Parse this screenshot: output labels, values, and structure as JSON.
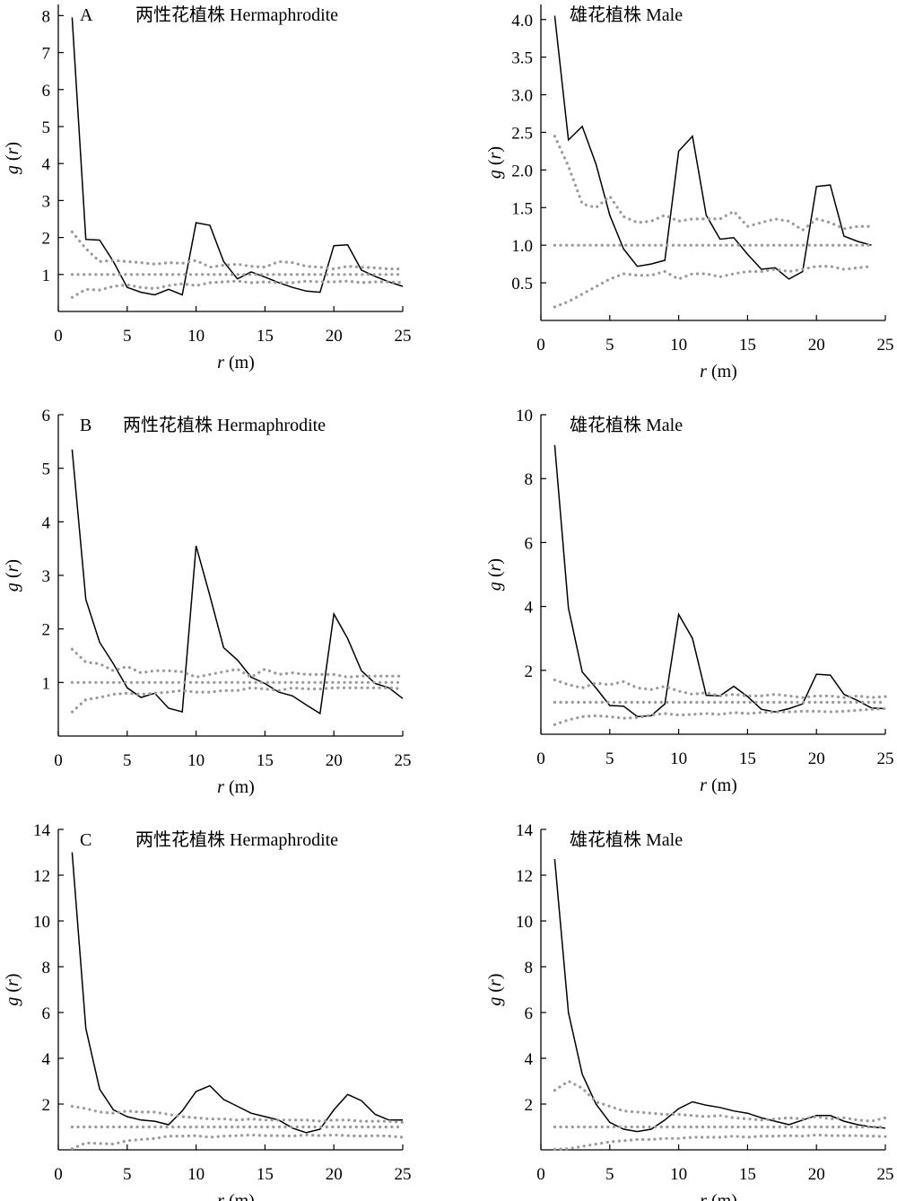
{
  "figure": {
    "panel_letters": [
      "A",
      "B",
      "C"
    ]
  },
  "chart_data": [
    {
      "id": "A-herm",
      "type": "line",
      "panel_letter": "A",
      "title": "两性花植株 Hermaphrodite",
      "xlabel": "r (m)",
      "ylabel": "g (r)",
      "xlim": [
        0,
        25
      ],
      "ylim": [
        0,
        8.3
      ],
      "xticks": [
        0,
        5,
        10,
        15,
        20,
        25
      ],
      "yticks": [
        1,
        2,
        3,
        4,
        5,
        6,
        7,
        8
      ],
      "x": [
        1,
        2,
        3,
        4,
        5,
        6,
        7,
        8,
        9,
        10,
        11,
        12,
        13,
        14,
        15,
        16,
        17,
        18,
        19,
        20,
        21,
        22,
        23,
        24,
        25
      ],
      "series": [
        {
          "role": "observed",
          "style": "solid",
          "values": [
            7.95,
            1.95,
            1.93,
            1.35,
            0.65,
            0.52,
            0.45,
            0.6,
            0.45,
            2.4,
            2.33,
            1.35,
            0.88,
            1.07,
            0.93,
            0.78,
            0.65,
            0.55,
            0.52,
            1.78,
            1.8,
            1.12,
            0.95,
            0.8,
            0.68
          ]
        },
        {
          "role": "upper_envelope",
          "style": "dotted",
          "values": [
            2.15,
            1.7,
            1.35,
            1.38,
            1.35,
            1.32,
            1.28,
            1.32,
            1.3,
            1.38,
            1.2,
            1.25,
            1.28,
            1.22,
            1.2,
            1.35,
            1.32,
            1.22,
            1.2,
            1.15,
            1.22,
            1.2,
            1.18,
            1.15,
            1.15
          ]
        },
        {
          "role": "expected",
          "style": "dotted",
          "values": [
            1,
            1,
            1,
            1,
            1,
            1,
            1,
            1,
            1,
            1,
            1,
            1,
            1,
            1,
            1,
            1,
            1,
            1,
            1,
            1,
            1,
            1,
            1,
            1,
            1
          ]
        },
        {
          "role": "lower_envelope",
          "style": "dotted",
          "values": [
            0.38,
            0.6,
            0.58,
            0.68,
            0.72,
            0.65,
            0.62,
            0.7,
            0.75,
            0.7,
            0.78,
            0.8,
            0.82,
            0.78,
            0.8,
            0.78,
            0.78,
            0.82,
            0.8,
            0.8,
            0.82,
            0.78,
            0.8,
            0.8,
            0.78
          ]
        }
      ]
    },
    {
      "id": "A-male",
      "type": "line",
      "title": "雄花植株 Male",
      "xlabel": "r (m)",
      "ylabel": "g (r)",
      "xlim": [
        0,
        25
      ],
      "ylim": [
        0,
        4.2
      ],
      "xticks": [
        0,
        5,
        10,
        15,
        20,
        25
      ],
      "yticks": [
        0.5,
        1.0,
        1.5,
        2.0,
        2.5,
        3.0,
        3.5,
        4.0
      ],
      "ytick_labels": [
        "0.5",
        "1.0",
        "1.5",
        "2.0",
        "2.5",
        "3.0",
        "3.5",
        "4.0"
      ],
      "x": [
        1,
        2,
        3,
        4,
        5,
        6,
        7,
        8,
        9,
        10,
        11,
        12,
        13,
        14,
        15,
        16,
        17,
        18,
        19,
        20,
        21,
        22,
        23,
        24
      ],
      "series": [
        {
          "role": "observed",
          "style": "solid",
          "values": [
            4.05,
            2.4,
            2.58,
            2.08,
            1.4,
            0.95,
            0.72,
            0.75,
            0.8,
            2.25,
            2.45,
            1.4,
            1.08,
            1.1,
            0.88,
            0.68,
            0.7,
            0.55,
            0.65,
            1.78,
            1.8,
            1.12,
            1.05,
            1.0
          ]
        },
        {
          "role": "upper_envelope",
          "style": "dotted",
          "values": [
            2.45,
            2.05,
            1.55,
            1.5,
            1.65,
            1.38,
            1.3,
            1.32,
            1.4,
            1.32,
            1.35,
            1.35,
            1.35,
            1.45,
            1.25,
            1.3,
            1.35,
            1.32,
            1.2,
            1.35,
            1.3,
            1.22,
            1.25,
            1.25
          ]
        },
        {
          "role": "expected",
          "style": "dotted",
          "values": [
            1,
            1,
            1,
            1,
            1,
            1,
            1,
            1,
            1,
            1,
            1,
            1,
            1,
            1,
            1,
            1,
            1,
            1,
            1,
            1,
            1,
            1,
            1,
            1
          ]
        },
        {
          "role": "lower_envelope",
          "style": "dotted",
          "values": [
            0.18,
            0.25,
            0.35,
            0.45,
            0.55,
            0.62,
            0.6,
            0.6,
            0.65,
            0.55,
            0.62,
            0.62,
            0.58,
            0.62,
            0.65,
            0.65,
            0.68,
            0.65,
            0.68,
            0.72,
            0.72,
            0.68,
            0.7,
            0.72
          ]
        }
      ]
    },
    {
      "id": "B-herm",
      "type": "line",
      "panel_letter": "B",
      "title": "两性花植株 Hermaphrodite",
      "xlabel": "r (m)",
      "ylabel": "g (r)",
      "xlim": [
        0,
        25
      ],
      "ylim": [
        0,
        6.0
      ],
      "xticks": [
        0,
        5,
        10,
        15,
        20,
        25
      ],
      "yticks": [
        1,
        2,
        3,
        4,
        5,
        6
      ],
      "x": [
        1,
        2,
        3,
        4,
        5,
        6,
        7,
        8,
        9,
        10,
        11,
        12,
        13,
        14,
        15,
        16,
        17,
        18,
        19,
        20,
        21,
        22,
        23,
        24,
        25
      ],
      "series": [
        {
          "role": "observed",
          "style": "solid",
          "values": [
            5.35,
            2.55,
            1.75,
            1.35,
            0.9,
            0.72,
            0.8,
            0.52,
            0.45,
            3.55,
            2.62,
            1.65,
            1.42,
            1.1,
            0.98,
            0.82,
            0.75,
            0.58,
            0.42,
            2.28,
            1.82,
            1.22,
            0.98,
            0.9,
            0.7
          ]
        },
        {
          "role": "upper_envelope",
          "style": "dotted",
          "values": [
            1.62,
            1.38,
            1.35,
            1.22,
            1.3,
            1.18,
            1.22,
            1.22,
            1.2,
            1.1,
            1.15,
            1.2,
            1.25,
            1.1,
            1.25,
            1.15,
            1.18,
            1.15,
            1.15,
            1.15,
            1.1,
            1.12,
            1.12,
            1.12,
            1.12
          ]
        },
        {
          "role": "expected",
          "style": "dotted",
          "values": [
            1,
            1,
            1,
            1,
            1,
            1,
            1,
            1,
            1,
            1,
            1,
            1,
            1,
            1,
            1,
            1,
            1,
            1,
            1,
            1,
            1,
            1,
            1,
            1,
            1
          ]
        },
        {
          "role": "lower_envelope",
          "style": "dotted",
          "values": [
            0.45,
            0.68,
            0.72,
            0.78,
            0.8,
            0.78,
            0.8,
            0.82,
            0.85,
            0.82,
            0.82,
            0.85,
            0.85,
            0.9,
            0.88,
            0.85,
            0.9,
            0.88,
            0.88,
            0.9,
            0.9,
            0.9,
            0.9,
            0.9,
            0.88
          ]
        }
      ]
    },
    {
      "id": "B-male",
      "type": "line",
      "title": "雄花植株 Male",
      "xlabel": "r (m)",
      "ylabel": "g (r)",
      "xlim": [
        0,
        25
      ],
      "ylim": [
        0,
        10
      ],
      "xticks": [
        0,
        5,
        10,
        15,
        20,
        25
      ],
      "yticks": [
        2,
        4,
        6,
        8,
        10
      ],
      "x": [
        1,
        2,
        3,
        4,
        5,
        6,
        7,
        8,
        9,
        10,
        11,
        12,
        13,
        14,
        15,
        16,
        17,
        18,
        19,
        20,
        21,
        22,
        23,
        24,
        25
      ],
      "series": [
        {
          "role": "observed",
          "style": "solid",
          "values": [
            9.05,
            3.95,
            1.95,
            1.45,
            0.9,
            0.88,
            0.55,
            0.58,
            0.95,
            3.75,
            3.0,
            1.22,
            1.2,
            1.5,
            1.18,
            0.78,
            0.7,
            0.8,
            0.95,
            1.88,
            1.85,
            1.25,
            1.05,
            0.82,
            0.8
          ]
        },
        {
          "role": "upper_envelope",
          "style": "dotted",
          "values": [
            1.7,
            1.55,
            1.45,
            1.6,
            1.55,
            1.65,
            1.45,
            1.4,
            1.5,
            1.35,
            1.25,
            1.3,
            1.2,
            1.25,
            1.2,
            1.2,
            1.25,
            1.2,
            1.15,
            1.2,
            1.2,
            1.15,
            1.2,
            1.15,
            1.18
          ]
        },
        {
          "role": "expected",
          "style": "dotted",
          "values": [
            1,
            1,
            1,
            1,
            1,
            1,
            1,
            1,
            1,
            1,
            1,
            1,
            1,
            1,
            1,
            1,
            1,
            1,
            1,
            1,
            1,
            1,
            1,
            1,
            1
          ]
        },
        {
          "role": "lower_envelope",
          "style": "dotted",
          "values": [
            0.3,
            0.45,
            0.55,
            0.58,
            0.55,
            0.5,
            0.52,
            0.6,
            0.65,
            0.6,
            0.62,
            0.65,
            0.62,
            0.68,
            0.65,
            0.68,
            0.7,
            0.7,
            0.72,
            0.72,
            0.7,
            0.72,
            0.75,
            0.78,
            0.8
          ]
        }
      ]
    },
    {
      "id": "C-herm",
      "type": "line",
      "panel_letter": "C",
      "title": "两性花植株 Hermaphrodite",
      "xlabel": "r (m)",
      "ylabel": "g (r)",
      "xlim": [
        0,
        25
      ],
      "ylim": [
        0,
        14
      ],
      "xticks": [
        0,
        5,
        10,
        15,
        20,
        25
      ],
      "yticks": [
        2,
        4,
        6,
        8,
        10,
        12,
        14
      ],
      "x": [
        1,
        2,
        3,
        4,
        5,
        6,
        7,
        8,
        9,
        10,
        11,
        12,
        13,
        14,
        15,
        16,
        17,
        18,
        19,
        20,
        21,
        22,
        23,
        24,
        25
      ],
      "series": [
        {
          "role": "observed",
          "style": "solid",
          "values": [
            13.0,
            5.3,
            2.65,
            1.75,
            1.45,
            1.3,
            1.25,
            1.1,
            1.7,
            2.55,
            2.8,
            2.2,
            1.9,
            1.6,
            1.45,
            1.3,
            0.95,
            0.75,
            0.9,
            1.75,
            2.42,
            2.15,
            1.55,
            1.3,
            1.3
          ]
        },
        {
          "role": "upper_envelope",
          "style": "dotted",
          "values": [
            1.9,
            1.8,
            1.65,
            1.6,
            1.7,
            1.65,
            1.65,
            1.55,
            1.45,
            1.4,
            1.35,
            1.35,
            1.3,
            1.35,
            1.3,
            1.3,
            1.3,
            1.3,
            1.25,
            1.3,
            1.3,
            1.25,
            1.25,
            1.25,
            1.2
          ]
        },
        {
          "role": "expected",
          "style": "dotted",
          "values": [
            1,
            1,
            1,
            1,
            1,
            1,
            1,
            1,
            1,
            1,
            1,
            1,
            1,
            1,
            1,
            1,
            1,
            1,
            1,
            1,
            1,
            1,
            1,
            1,
            1
          ]
        },
        {
          "role": "lower_envelope",
          "style": "dotted",
          "values": [
            0.05,
            0.3,
            0.28,
            0.25,
            0.4,
            0.45,
            0.5,
            0.6,
            0.6,
            0.62,
            0.55,
            0.6,
            0.62,
            0.65,
            0.62,
            0.62,
            0.6,
            0.65,
            0.62,
            0.65,
            0.62,
            0.6,
            0.62,
            0.6,
            0.55
          ]
        }
      ]
    },
    {
      "id": "C-male",
      "type": "line",
      "title": "雄花植株 Male",
      "xlabel": "r (m)",
      "ylabel": "g (r)",
      "xlim": [
        0,
        25
      ],
      "ylim": [
        0,
        14
      ],
      "xticks": [
        0,
        5,
        10,
        15,
        20,
        25
      ],
      "yticks": [
        2,
        4,
        6,
        8,
        10,
        12,
        14
      ],
      "x": [
        1,
        2,
        3,
        4,
        5,
        6,
        7,
        8,
        9,
        10,
        11,
        12,
        13,
        14,
        15,
        16,
        17,
        18,
        19,
        20,
        21,
        22,
        23,
        24,
        25
      ],
      "series": [
        {
          "role": "observed",
          "style": "solid",
          "values": [
            12.7,
            6.0,
            3.3,
            2.0,
            1.2,
            0.9,
            0.8,
            0.9,
            1.3,
            1.8,
            2.1,
            1.95,
            1.85,
            1.7,
            1.6,
            1.4,
            1.25,
            1.1,
            1.3,
            1.5,
            1.5,
            1.25,
            1.1,
            1.0,
            0.95
          ]
        },
        {
          "role": "upper_envelope",
          "style": "dotted",
          "values": [
            2.6,
            3.0,
            2.7,
            2.1,
            1.9,
            1.7,
            1.65,
            1.6,
            1.55,
            1.55,
            1.5,
            1.45,
            1.5,
            1.4,
            1.35,
            1.3,
            1.35,
            1.4,
            1.35,
            1.45,
            1.35,
            1.4,
            1.3,
            1.25,
            1.4
          ]
        },
        {
          "role": "expected",
          "style": "dotted",
          "values": [
            1,
            1,
            1,
            1,
            1,
            1,
            1,
            1,
            1,
            1,
            1,
            1,
            1,
            1,
            1,
            1,
            1,
            1,
            1,
            1,
            1,
            1,
            1,
            1,
            1
          ]
        },
        {
          "role": "lower_envelope",
          "style": "dotted",
          "values": [
            0.02,
            0.05,
            0.15,
            0.25,
            0.35,
            0.4,
            0.45,
            0.45,
            0.5,
            0.5,
            0.55,
            0.55,
            0.55,
            0.6,
            0.55,
            0.6,
            0.6,
            0.62,
            0.6,
            0.65,
            0.62,
            0.62,
            0.62,
            0.6,
            0.58
          ]
        }
      ]
    }
  ]
}
